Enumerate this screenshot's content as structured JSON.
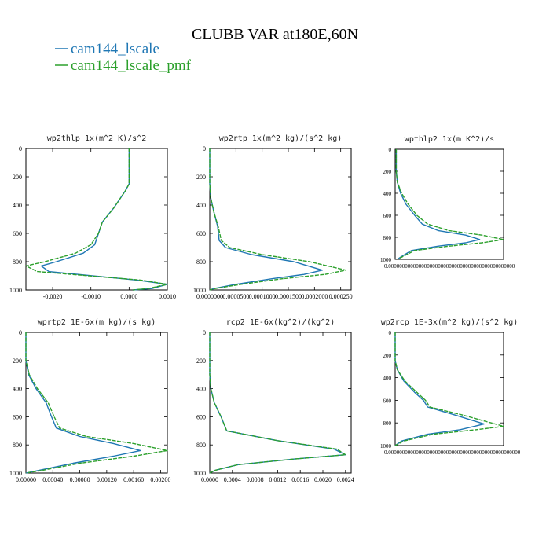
{
  "figure": {
    "title": "CLUBB VAR at180E,60N",
    "legend": [
      {
        "label": "cam144_lscale",
        "color": "#1f77b4"
      },
      {
        "label": "cam144_lscale_pmf",
        "color": "#2ca02c"
      }
    ]
  },
  "chart_data": [
    {
      "type": "line",
      "title": "wp2thlp  1x(m^2 K)/s^2",
      "xlim": [
        -0.0027,
        0.001
      ],
      "ylim": [
        1000,
        0
      ],
      "xticks": [
        "-0.0020",
        "-0.0010",
        "0.0000",
        "0.0010"
      ],
      "xtick_values": [
        -0.002,
        -0.001,
        0,
        0.001
      ],
      "yticks": [
        "0",
        "200",
        "400",
        "600",
        "800",
        "1000"
      ],
      "ytick_values": [
        0,
        200,
        400,
        600,
        800,
        1000
      ],
      "series": [
        {
          "name": "cam144_lscale",
          "x": [
            0,
            0,
            -0.0001,
            -0.0004,
            -0.0007,
            -0.0008,
            -0.0009,
            -0.0012,
            -0.0019,
            -0.0023,
            -0.0021,
            0.0002,
            0.001,
            0.0006,
            0.0001
          ],
          "y": [
            0,
            250,
            300,
            420,
            520,
            600,
            680,
            740,
            800,
            830,
            870,
            930,
            960,
            990,
            1000
          ]
        },
        {
          "name": "cam144_lscale_pmf",
          "x": [
            0,
            0,
            -0.0001,
            -0.0004,
            -0.0007,
            -0.0008,
            -0.001,
            -0.0014,
            -0.0022,
            -0.0027,
            -0.0024,
            0.0003,
            0.001,
            0.0005,
            0.0001
          ],
          "y": [
            0,
            250,
            300,
            420,
            520,
            600,
            680,
            740,
            800,
            830,
            870,
            930,
            960,
            990,
            1000
          ]
        }
      ]
    },
    {
      "type": "line",
      "title": "wp2rtp  1x(m^2 kg)/(s^2 kg)",
      "xlim": [
        0,
        0.00027
      ],
      "ylim": [
        1000,
        0
      ],
      "xticks": [
        "0.0000000",
        "0.0000500",
        "0.0001000",
        "0.0001500",
        "0.0002000",
        "0.000250"
      ],
      "xtick_values": [
        0,
        5e-05,
        0.0001,
        0.00015,
        0.0002,
        0.00025
      ],
      "yticks": [
        "0",
        "200",
        "400",
        "600",
        "800",
        "1000"
      ],
      "ytick_values": [
        0,
        200,
        400,
        600,
        800,
        1000
      ],
      "series": [
        {
          "name": "cam144_lscale",
          "x": [
            0,
            0,
            2e-06,
            8e-06,
            1.5e-05,
            1.8e-05,
            3e-05,
            8e-05,
            0.00016,
            0.000215,
            0.00018,
            0.00012,
            5e-05,
            8e-06,
            0
          ],
          "y": [
            0,
            250,
            350,
            450,
            550,
            650,
            700,
            750,
            800,
            860,
            890,
            920,
            960,
            990,
            1000
          ]
        },
        {
          "name": "cam144_lscale_pmf",
          "x": [
            0,
            0,
            2e-06,
            8e-06,
            1.6e-05,
            2.2e-05,
            3.8e-05,
            0.0001,
            0.00019,
            0.00026,
            0.00022,
            0.00014,
            6e-05,
            1e-05,
            0
          ],
          "y": [
            0,
            250,
            350,
            450,
            550,
            650,
            700,
            750,
            800,
            860,
            890,
            920,
            960,
            990,
            1000
          ]
        }
      ]
    },
    {
      "type": "line",
      "title": "wpthlp2  1x(m K^2)/s",
      "xlim": [
        0,
        1
      ],
      "ylim": [
        1000,
        0
      ],
      "xticks": [
        "0.0000000000000000000000000000000000000000000000"
      ],
      "xtick_values": [
        0
      ],
      "yticks": [
        "0",
        "200",
        "400",
        "600",
        "800",
        "1000"
      ],
      "ytick_values": [
        0,
        200,
        400,
        600,
        800,
        1000
      ],
      "series": [
        {
          "name": "cam144_lscale",
          "x": [
            0.01,
            0.01,
            0.02,
            0.05,
            0.1,
            0.18,
            0.25,
            0.4,
            0.65,
            0.78,
            0.65,
            0.4,
            0.15,
            0.05,
            0.02
          ],
          "y": [
            0,
            200,
            300,
            400,
            500,
            600,
            680,
            740,
            780,
            820,
            850,
            880,
            920,
            980,
            1000
          ]
        },
        {
          "name": "cam144_lscale_pmf",
          "x": [
            0.01,
            0.01,
            0.02,
            0.06,
            0.12,
            0.2,
            0.3,
            0.5,
            0.8,
            1.0,
            0.8,
            0.5,
            0.18,
            0.06,
            0.02
          ],
          "y": [
            0,
            200,
            300,
            400,
            500,
            600,
            680,
            740,
            780,
            820,
            850,
            880,
            920,
            980,
            1000
          ]
        }
      ]
    },
    {
      "type": "line",
      "title": "wprtp2  1E-6x(m kg)/(s kg)",
      "xlim": [
        0,
        0.0021
      ],
      "ylim": [
        1000,
        0
      ],
      "xticks": [
        "0.00000",
        "0.00040",
        "0.00080",
        "0.00120",
        "0.00160",
        "0.00200"
      ],
      "xtick_values": [
        0,
        0.0004,
        0.0008,
        0.0012,
        0.0016,
        0.002
      ],
      "yticks": [
        "0",
        "200",
        "400",
        "600",
        "800",
        "1000"
      ],
      "ytick_values": [
        0,
        200,
        400,
        600,
        800,
        1000
      ],
      "series": [
        {
          "name": "cam144_lscale",
          "x": [
            0,
            0,
            4e-05,
            0.00015,
            0.0003,
            0.00038,
            0.00045,
            0.0008,
            0.0013,
            0.0017,
            0.0013,
            0.0007,
            0.0002,
            0
          ],
          "y": [
            0,
            200,
            300,
            400,
            500,
            600,
            680,
            740,
            790,
            840,
            880,
            930,
            980,
            1000
          ]
        },
        {
          "name": "cam144_lscale_pmf",
          "x": [
            0,
            0,
            5e-05,
            0.00017,
            0.00033,
            0.00042,
            0.0005,
            0.0009,
            0.0016,
            0.0021,
            0.0016,
            0.0008,
            0.00025,
            0
          ],
          "y": [
            0,
            200,
            300,
            400,
            500,
            600,
            680,
            740,
            790,
            840,
            880,
            930,
            980,
            1000
          ]
        }
      ]
    },
    {
      "type": "line",
      "title": "rcp2  1E-6x(kg^2)/(kg^2)",
      "xlim": [
        0,
        0.0025
      ],
      "ylim": [
        1000,
        0
      ],
      "xticks": [
        "0.0000",
        "0.0004",
        "0.0008",
        "0.0012",
        "0.0016",
        "0.0020",
        "0.0024"
      ],
      "xtick_values": [
        0,
        0.0004,
        0.0008,
        0.0012,
        0.0016,
        0.002,
        0.0024
      ],
      "yticks": [
        "0",
        "200",
        "400",
        "600",
        "800",
        "1000"
      ],
      "ytick_values": [
        0,
        200,
        400,
        600,
        800,
        1000
      ],
      "series": [
        {
          "name": "cam144_lscale",
          "x": [
            0,
            0,
            2e-05,
            8e-05,
            0.0002,
            0.0003,
            0.0012,
            0.0022,
            0.0024,
            0.0015,
            0.0005,
            0.0001,
            0
          ],
          "y": [
            0,
            300,
            400,
            500,
            600,
            700,
            770,
            830,
            870,
            900,
            940,
            980,
            1000
          ]
        },
        {
          "name": "cam144_lscale_pmf",
          "x": [
            0,
            0,
            2e-05,
            8e-05,
            0.0002,
            0.0003,
            0.0012,
            0.00225,
            0.0024,
            0.0015,
            0.0005,
            0.0001,
            0
          ],
          "y": [
            0,
            300,
            400,
            500,
            600,
            700,
            770,
            830,
            870,
            900,
            940,
            980,
            1000
          ]
        }
      ]
    },
    {
      "type": "line",
      "title": "wp2rcp  1E-3x(m^2 kg)/(s^2 kg)",
      "xlim": [
        0,
        1
      ],
      "ylim": [
        1000,
        0
      ],
      "xticks": [
        "0.000000000000000000000000000000000000000000000000"
      ],
      "xtick_values": [
        0
      ],
      "yticks": [
        "0",
        "200",
        "400",
        "600",
        "800",
        "1000"
      ],
      "ytick_values": [
        0,
        200,
        400,
        600,
        800,
        1000
      ],
      "series": [
        {
          "name": "cam144_lscale",
          "x": [
            0,
            0,
            0.02,
            0.08,
            0.18,
            0.26,
            0.3,
            0.55,
            0.82,
            0.6,
            0.3,
            0.06,
            0
          ],
          "y": [
            0,
            250,
            330,
            430,
            530,
            600,
            660,
            730,
            810,
            860,
            900,
            960,
            1000
          ]
        },
        {
          "name": "cam144_lscale_pmf",
          "x": [
            0,
            0,
            0.02,
            0.09,
            0.2,
            0.28,
            0.32,
            0.62,
            1.0,
            0.75,
            0.35,
            0.08,
            0
          ],
          "y": [
            0,
            250,
            330,
            430,
            530,
            600,
            660,
            730,
            830,
            860,
            900,
            960,
            1000
          ]
        }
      ]
    }
  ]
}
